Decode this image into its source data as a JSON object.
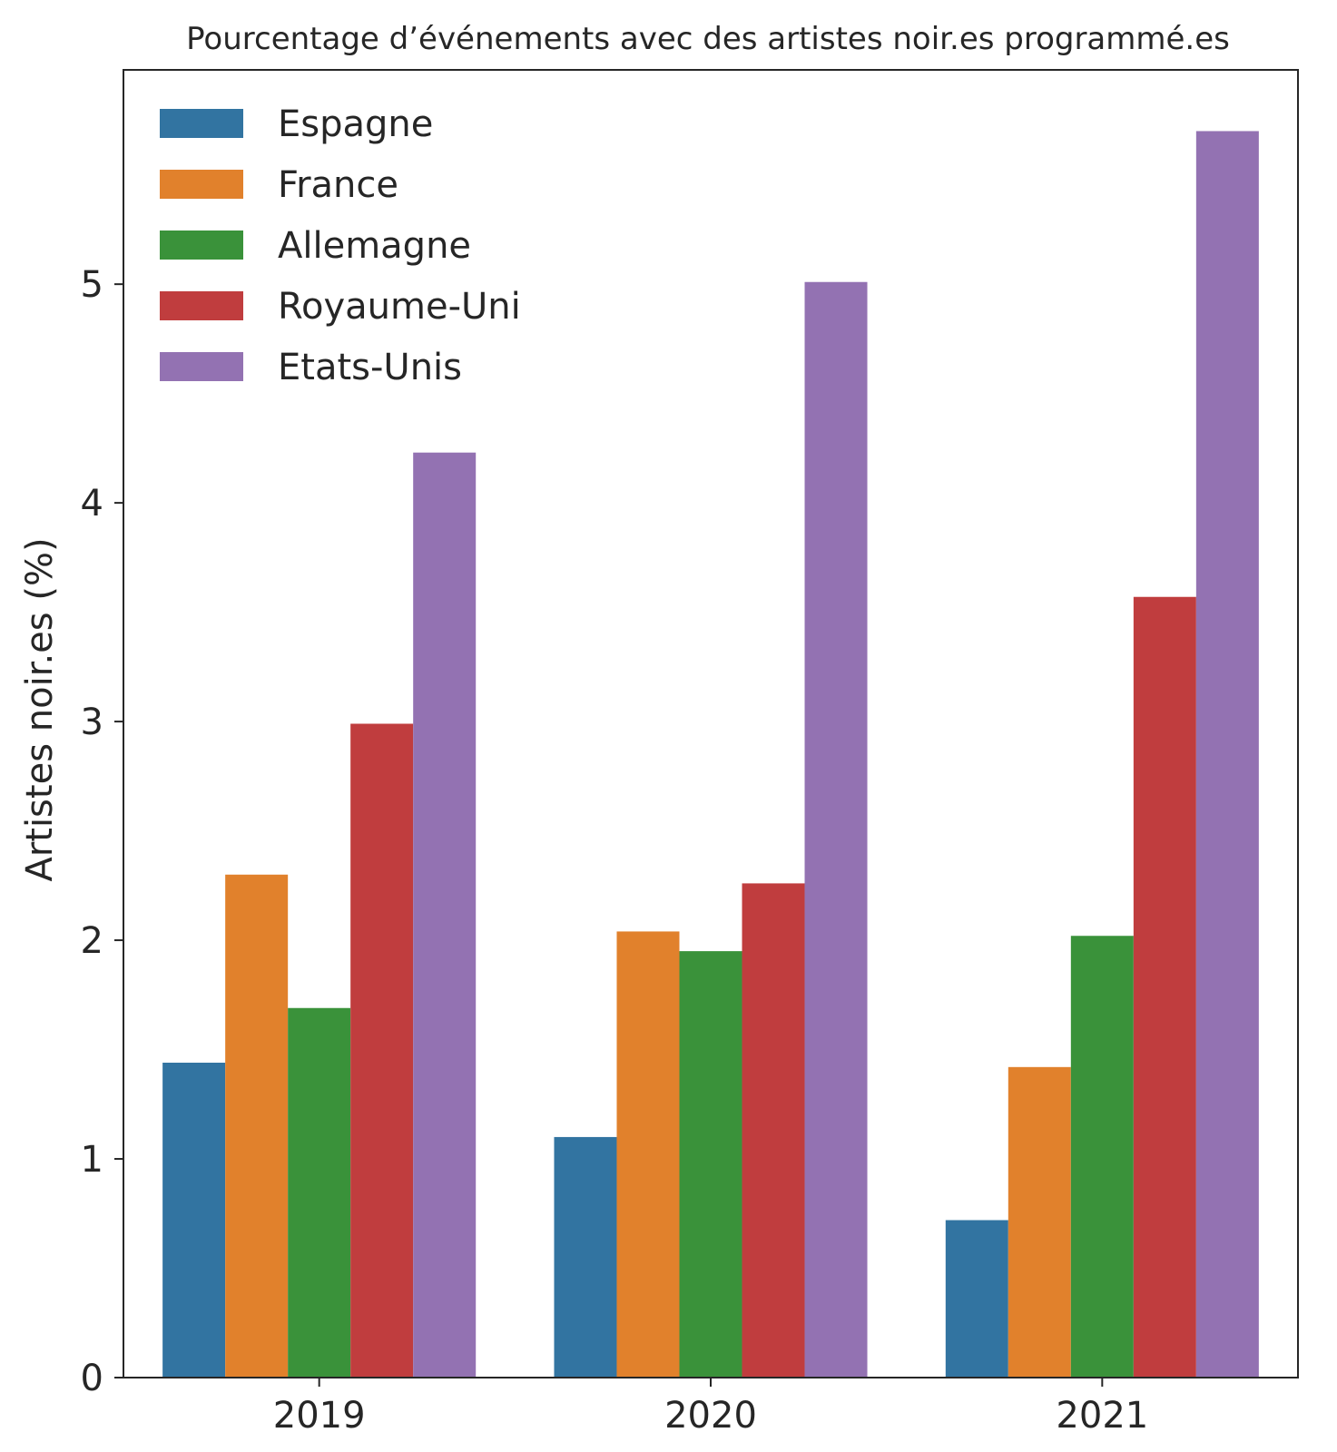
{
  "chart_data": {
    "type": "bar",
    "title": "Pourcentage d’événements avec des artistes noir.es programmé.es",
    "xlabel": "",
    "ylabel": "Artistes noir.es (%)",
    "categories": [
      "2019",
      "2020",
      "2021"
    ],
    "yticks": [
      "0",
      "1",
      "2",
      "3",
      "4",
      "5"
    ],
    "ylim": [
      0,
      5.98
    ],
    "grid": false,
    "legend_position": "top-left",
    "series": [
      {
        "name": "Espagne",
        "color": "#3274a1",
        "values": [
          1.44,
          1.1,
          0.72
        ]
      },
      {
        "name": "France",
        "color": "#e1812c",
        "values": [
          2.3,
          2.04,
          1.42
        ]
      },
      {
        "name": "Allemagne",
        "color": "#3a923a",
        "values": [
          1.69,
          1.95,
          2.02
        ]
      },
      {
        "name": "Royaume-Uni",
        "color": "#c03d3e",
        "values": [
          2.99,
          2.26,
          3.57
        ]
      },
      {
        "name": "Etats-Unis",
        "color": "#9372b2",
        "values": [
          4.23,
          5.01,
          5.7
        ]
      }
    ]
  }
}
